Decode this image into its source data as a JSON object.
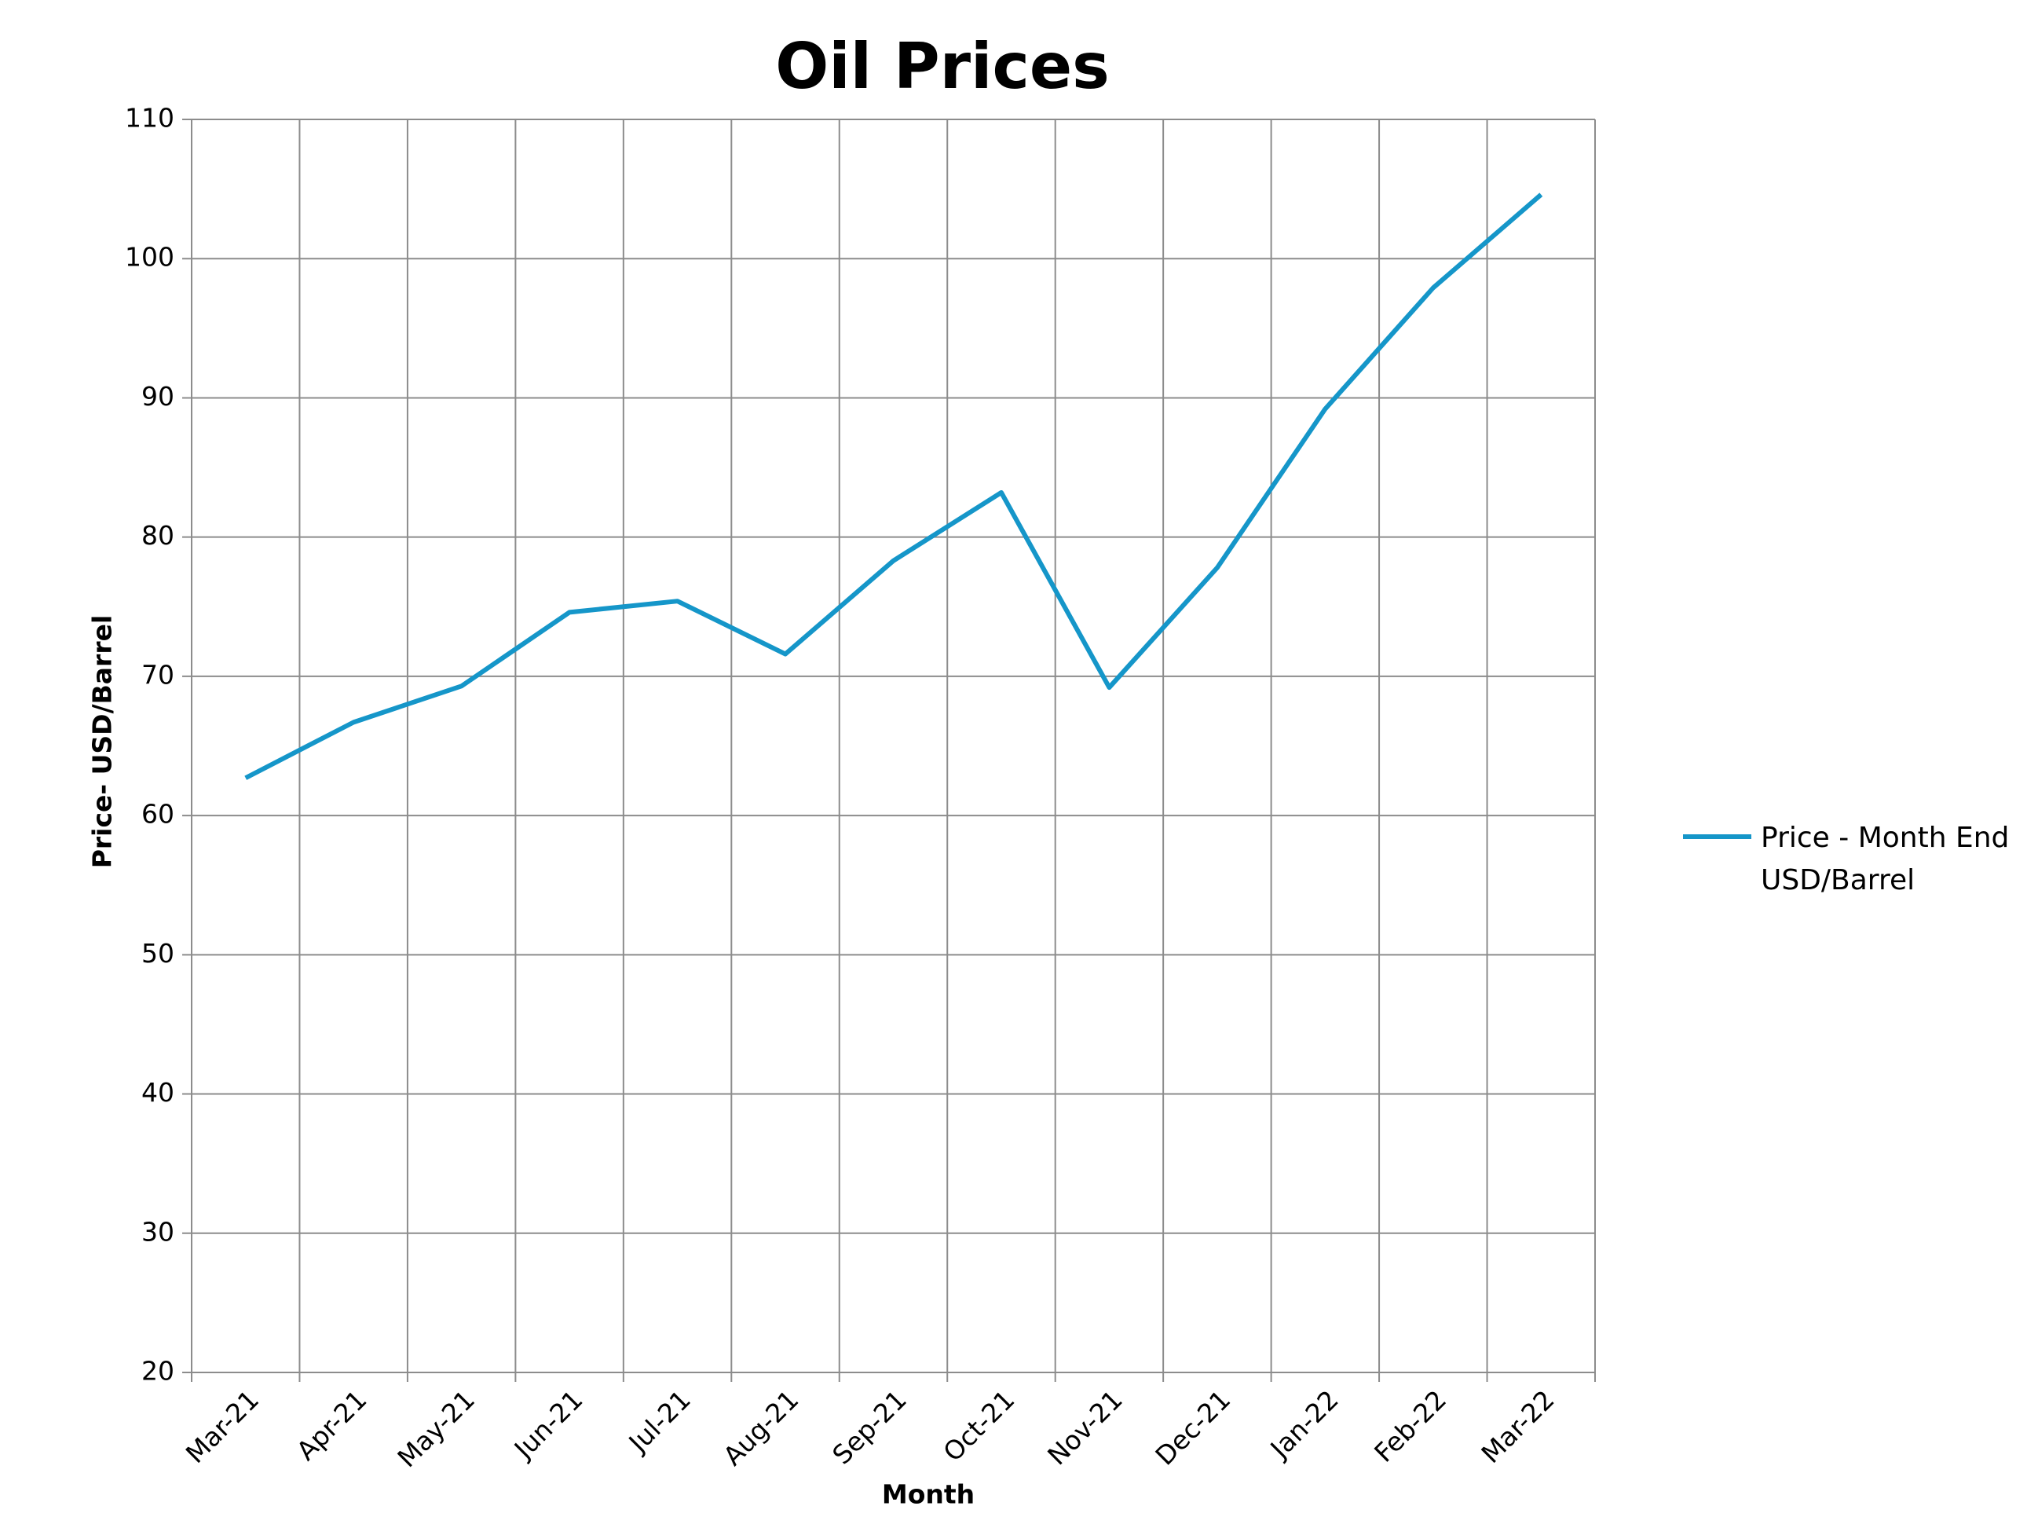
{
  "chart_data": {
    "type": "line",
    "title": "Oil Prices",
    "x_label": "Month",
    "y_label": "Price- USD/Barrel",
    "categories": [
      "Mar-21",
      "Apr-21",
      "May-21",
      "Jun-21",
      "Jul-21",
      "Aug-21",
      "Sep-21",
      "Oct-21",
      "Nov-21",
      "Dec-21",
      "Jan-22",
      "Feb-22",
      "Mar-22"
    ],
    "series": [
      {
        "name": "Price - Month End USD/Barrel",
        "color": "#1596c9",
        "values": [
          62.7,
          66.7,
          69.3,
          74.6,
          75.4,
          71.6,
          78.3,
          83.2,
          69.2,
          77.8,
          89.2,
          97.9,
          104.6
        ]
      }
    ],
    "ylim": [
      20,
      110
    ],
    "yticks": [
      20,
      30,
      40,
      50,
      60,
      70,
      80,
      90,
      100,
      110
    ],
    "grid": true,
    "legend": "right"
  }
}
